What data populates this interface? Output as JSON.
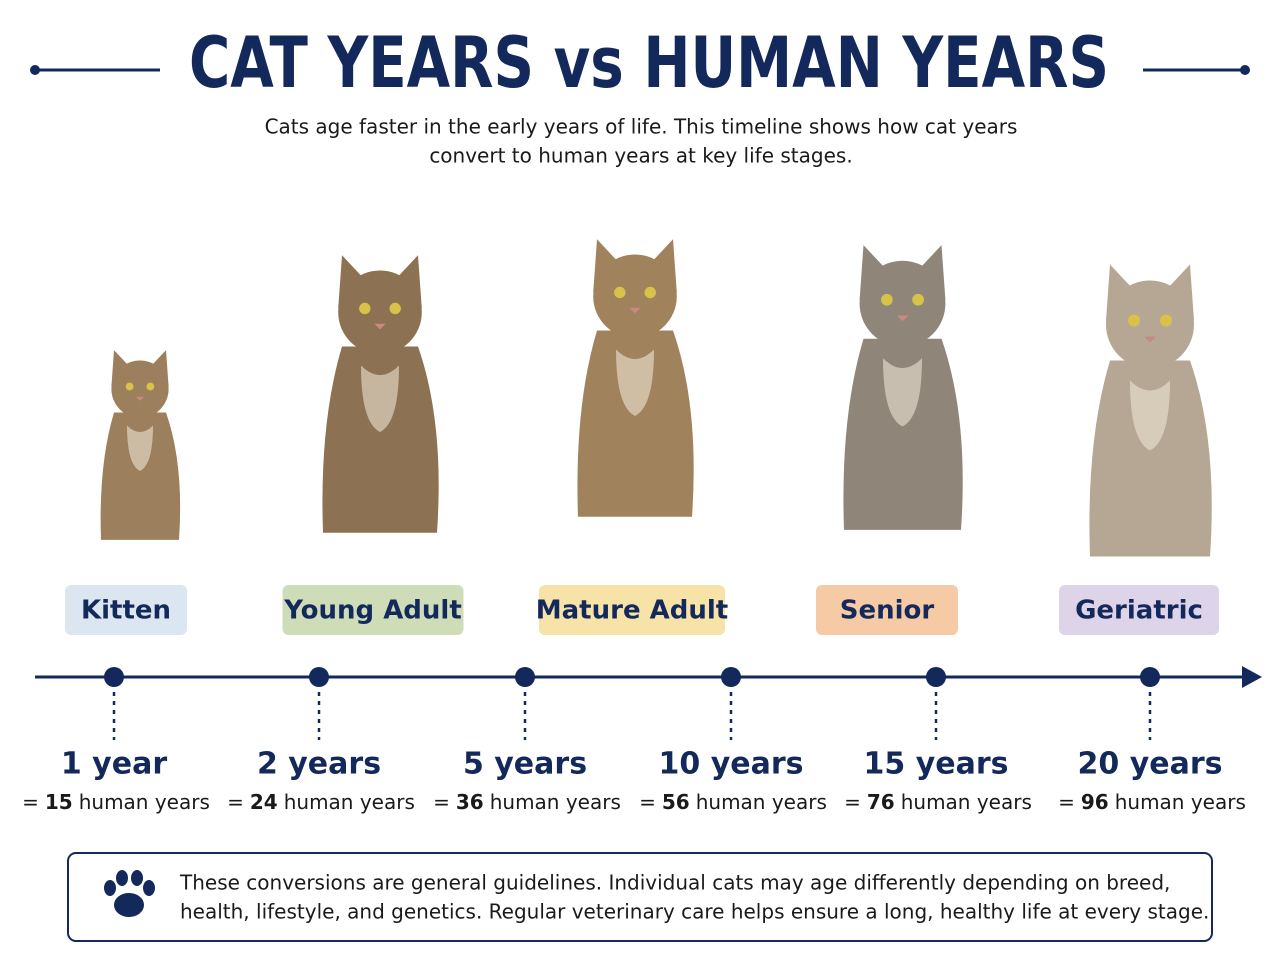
{
  "header": {
    "title": "CAT YEARS vs HUMAN YEARS",
    "subtitle": [
      "Cats age faster in the early years of life. This timeline shows how cat years",
      "convert to human years at key life stages."
    ]
  },
  "stages": [
    {
      "label": "Kitten",
      "color": "#dce6f0"
    },
    {
      "label": "Young Adult",
      "color": "#cfdcb8"
    },
    {
      "label": "Mature Adult",
      "color": "#f7e2a8"
    },
    {
      "label": "Senior",
      "color": "#f6caa4"
    },
    {
      "label": "Geriatric",
      "color": "#ddd4e9"
    }
  ],
  "timeline": [
    {
      "cat_age": "1 year",
      "equals": "=",
      "human_years": 15,
      "unit": "human years"
    },
    {
      "cat_age": "2 years",
      "equals": "=",
      "human_years": 24,
      "unit": "human years"
    },
    {
      "cat_age": "5 years",
      "equals": "=",
      "human_years": 36,
      "unit": "human years"
    },
    {
      "cat_age": "10 years",
      "equals": "=",
      "human_years": 56,
      "unit": "human years"
    },
    {
      "cat_age": "15 years",
      "equals": "=",
      "human_years": 76,
      "unit": "human years"
    },
    {
      "cat_age": "20 years",
      "equals": "=",
      "human_years": 96,
      "unit": "human years"
    }
  ],
  "note": [
    "These conversions are general guidelines. Individual cats may age differently depending on breed,",
    "health, lifestyle, and genetics. Regular veterinary care helps ensure a long, healthy life at every stage."
  ]
}
